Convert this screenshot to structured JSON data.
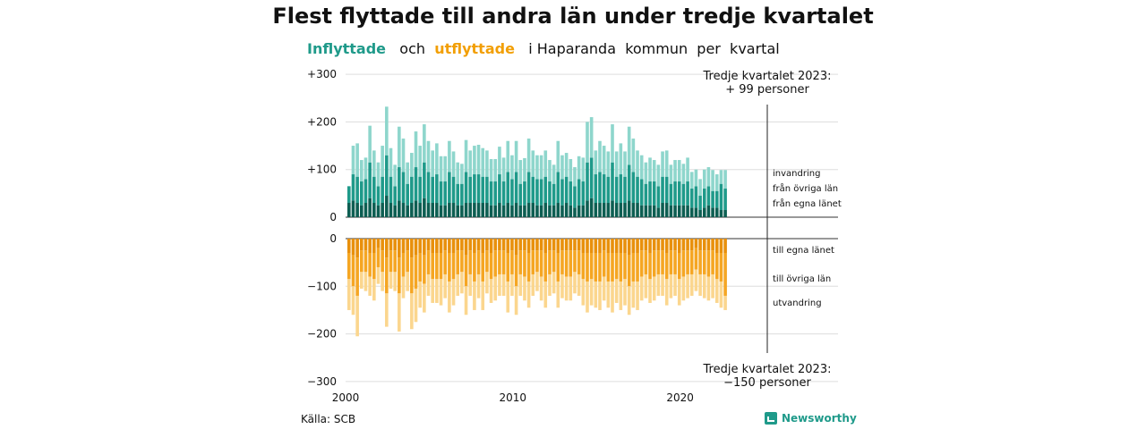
{
  "title": "Flest flyttade till andra län under tredje kvartalet",
  "subtitle": {
    "in_word": "Inflyttade",
    "mid": "och",
    "out_word": "utflyttade",
    "rest": "i Haparanda  kommun  per  kvartal"
  },
  "colors": {
    "in_light": "#8ed6cc",
    "in_mid": "#1f9a8a",
    "in_dark": "#0d5e52",
    "out_dark": "#e8900c",
    "out_mid": "#f5a623",
    "out_light": "#fbd68e"
  },
  "source": "Källa: SCB",
  "brand": "Newsworthy",
  "chart_data": {
    "type": "bar",
    "x_axis": {
      "labels": [
        "2000",
        "2010",
        "2020"
      ],
      "start_year": 2000,
      "end": "2023 Q3"
    },
    "y_axis": {
      "ticks": [
        "+300",
        "+200",
        "+100",
        "0",
        "0",
        "−100",
        "−200",
        "−300"
      ],
      "range": [
        -300,
        300
      ]
    },
    "top_annotation": {
      "line1": "Tredje kvartalet 2023:",
      "line2": "+ 99 personer"
    },
    "bottom_annotation": {
      "line1": "Tredje kvartalet 2023:",
      "line2": "−150 personer"
    },
    "in_series": [
      {
        "name": "invandring",
        "key": "invandring"
      },
      {
        "name": "från övriga län",
        "key": "fran_ovriga"
      },
      {
        "name": "från egna länet",
        "key": "fran_egna"
      }
    ],
    "out_series": [
      {
        "name": "till egna länet",
        "key": "till_egna"
      },
      {
        "name": "till övriga län",
        "key": "till_ovriga"
      },
      {
        "name": "utvandring",
        "key": "utvandring"
      }
    ],
    "inflow_totals": [
      65,
      150,
      155,
      120,
      125,
      192,
      140,
      115,
      150,
      232,
      145,
      110,
      190,
      165,
      115,
      135,
      180,
      150,
      195,
      160,
      140,
      155,
      128,
      128,
      160,
      138,
      115,
      112,
      162,
      140,
      150,
      152,
      145,
      140,
      122,
      122,
      148,
      125,
      160,
      130,
      160,
      120,
      124,
      165,
      140,
      130,
      130,
      140,
      120,
      110,
      160,
      130,
      135,
      122,
      105,
      128,
      125,
      200,
      210,
      140,
      160,
      150,
      138,
      195,
      138,
      155,
      138,
      190,
      165,
      140,
      130,
      115,
      125,
      120,
      110,
      138,
      140,
      110,
      120,
      120,
      112,
      125,
      95,
      100,
      80,
      100,
      105,
      99,
      90,
      99,
      99
    ],
    "fran_egna": [
      30,
      35,
      30,
      25,
      30,
      40,
      30,
      25,
      30,
      45,
      30,
      25,
      35,
      30,
      25,
      30,
      35,
      30,
      40,
      30,
      30,
      30,
      25,
      25,
      30,
      30,
      25,
      25,
      30,
      30,
      30,
      30,
      30,
      30,
      25,
      25,
      30,
      25,
      30,
      25,
      30,
      25,
      25,
      30,
      30,
      25,
      25,
      30,
      25,
      25,
      30,
      25,
      30,
      25,
      20,
      25,
      25,
      35,
      40,
      30,
      30,
      30,
      30,
      35,
      30,
      30,
      30,
      35,
      30,
      30,
      25,
      25,
      25,
      25,
      20,
      30,
      30,
      25,
      25,
      25,
      25,
      25,
      20,
      20,
      15,
      20,
      25,
      20,
      20,
      15,
      15
    ],
    "fran_ovriga": [
      35,
      55,
      55,
      50,
      50,
      75,
      55,
      40,
      55,
      85,
      55,
      40,
      70,
      65,
      45,
      55,
      70,
      55,
      75,
      65,
      55,
      60,
      50,
      50,
      65,
      55,
      45,
      45,
      65,
      55,
      60,
      60,
      55,
      55,
      50,
      50,
      60,
      50,
      65,
      55,
      65,
      45,
      50,
      65,
      55,
      55,
      55,
      55,
      50,
      45,
      65,
      55,
      55,
      50,
      45,
      55,
      50,
      80,
      85,
      60,
      65,
      60,
      55,
      80,
      55,
      60,
      55,
      75,
      65,
      55,
      55,
      45,
      50,
      50,
      45,
      55,
      55,
      45,
      50,
      50,
      45,
      50,
      40,
      45,
      30,
      40,
      40,
      35,
      35,
      55,
      45
    ],
    "invandring": [
      0,
      60,
      70,
      45,
      45,
      77,
      55,
      50,
      65,
      102,
      60,
      45,
      85,
      70,
      45,
      50,
      75,
      65,
      80,
      65,
      55,
      65,
      53,
      53,
      65,
      53,
      45,
      42,
      67,
      55,
      60,
      62,
      60,
      55,
      47,
      47,
      58,
      50,
      65,
      50,
      65,
      50,
      49,
      70,
      55,
      50,
      50,
      55,
      45,
      40,
      65,
      50,
      50,
      47,
      40,
      48,
      50,
      85,
      85,
      50,
      65,
      60,
      53,
      80,
      53,
      65,
      53,
      80,
      70,
      55,
      50,
      45,
      50,
      45,
      45,
      53,
      55,
      40,
      45,
      45,
      42,
      50,
      35,
      35,
      35,
      40,
      40,
      44,
      35,
      29,
      39
    ],
    "outflow_totals": [
      150,
      160,
      205,
      105,
      110,
      120,
      130,
      95,
      110,
      185,
      105,
      110,
      195,
      125,
      110,
      190,
      175,
      145,
      155,
      120,
      135,
      135,
      140,
      125,
      155,
      140,
      120,
      115,
      160,
      120,
      150,
      125,
      150,
      115,
      135,
      130,
      120,
      120,
      155,
      120,
      160,
      120,
      130,
      145,
      120,
      110,
      130,
      145,
      120,
      115,
      145,
      125,
      130,
      130,
      115,
      120,
      140,
      155,
      140,
      145,
      150,
      130,
      145,
      155,
      135,
      150,
      140,
      160,
      145,
      150,
      130,
      125,
      135,
      130,
      120,
      120,
      140,
      125,
      120,
      140,
      130,
      125,
      120,
      110,
      120,
      125,
      130,
      125,
      135,
      145,
      150
    ],
    "till_egna": [
      30,
      35,
      40,
      25,
      25,
      30,
      30,
      20,
      25,
      40,
      25,
      25,
      40,
      30,
      25,
      40,
      35,
      30,
      35,
      25,
      30,
      30,
      30,
      25,
      30,
      30,
      25,
      25,
      35,
      25,
      30,
      25,
      30,
      25,
      30,
      25,
      25,
      25,
      30,
      25,
      35,
      25,
      25,
      30,
      25,
      25,
      25,
      30,
      25,
      25,
      30,
      25,
      25,
      25,
      25,
      25,
      30,
      30,
      30,
      30,
      30,
      25,
      30,
      30,
      30,
      30,
      30,
      35,
      30,
      30,
      25,
      25,
      30,
      25,
      25,
      25,
      30,
      25,
      25,
      30,
      25,
      25,
      25,
      20,
      25,
      25,
      25,
      25,
      30,
      30,
      30
    ],
    "till_ovriga": [
      55,
      65,
      80,
      45,
      45,
      50,
      55,
      40,
      45,
      75,
      45,
      45,
      75,
      50,
      45,
      75,
      70,
      60,
      60,
      50,
      55,
      55,
      55,
      50,
      60,
      55,
      50,
      45,
      65,
      50,
      60,
      50,
      60,
      45,
      55,
      55,
      50,
      50,
      60,
      50,
      65,
      50,
      55,
      60,
      50,
      45,
      55,
      60,
      50,
      45,
      60,
      50,
      55,
      55,
      45,
      50,
      55,
      60,
      55,
      60,
      60,
      55,
      60,
      60,
      55,
      60,
      55,
      65,
      60,
      60,
      55,
      50,
      55,
      55,
      50,
      50,
      55,
      50,
      50,
      55,
      55,
      50,
      50,
      45,
      50,
      50,
      55,
      50,
      55,
      60,
      90
    ],
    "utvandring": [
      65,
      60,
      85,
      35,
      40,
      40,
      45,
      35,
      40,
      70,
      35,
      40,
      80,
      45,
      40,
      75,
      70,
      55,
      60,
      45,
      50,
      50,
      55,
      50,
      65,
      55,
      45,
      45,
      60,
      45,
      60,
      50,
      60,
      45,
      50,
      50,
      45,
      45,
      65,
      45,
      60,
      45,
      50,
      55,
      45,
      40,
      50,
      55,
      45,
      45,
      55,
      50,
      50,
      50,
      45,
      45,
      55,
      65,
      55,
      55,
      60,
      50,
      55,
      65,
      50,
      60,
      55,
      60,
      55,
      60,
      50,
      50,
      50,
      50,
      45,
      45,
      55,
      50,
      45,
      55,
      50,
      50,
      45,
      45,
      45,
      50,
      50,
      50,
      50,
      55,
      30
    ]
  }
}
